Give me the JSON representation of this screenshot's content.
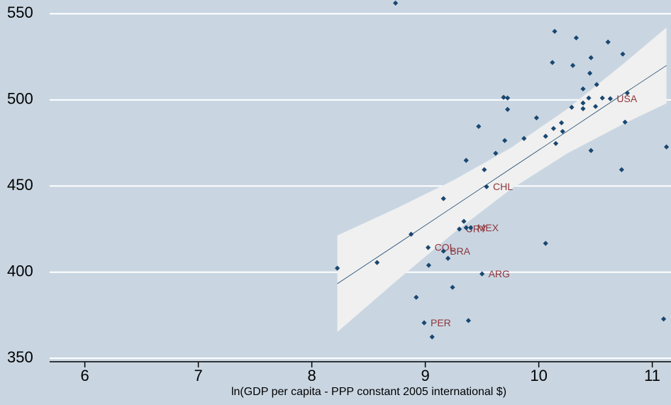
{
  "chart_data": {
    "type": "scatter",
    "x_label": "ln(GDP per capita - PPP constant 2005 international $)",
    "xlim": [
      5.69,
      11.165
    ],
    "ylim": [
      348,
      558
    ],
    "xticks": [
      6,
      7,
      8,
      9,
      10,
      11
    ],
    "yticks": [
      350,
      400,
      450,
      500,
      550
    ],
    "grid": true,
    "color": "#1a476f",
    "label_color": "#90353b",
    "band_color": "#f0f0f0",
    "line_color": "#1a476f",
    "x": [
      8.225,
      8.575,
      8.7375,
      8.875,
      8.92,
      8.99,
      9.025,
      9.03,
      9.06,
      9.16,
      9.16,
      9.2,
      9.24,
      9.3,
      9.34,
      9.36,
      9.38,
      9.4,
      9.36,
      9.47,
      9.5,
      9.52,
      9.54,
      9.62,
      9.7,
      9.69,
      9.725,
      9.725,
      9.87,
      9.98,
      10.06,
      10.06,
      10.12,
      10.13,
      10.14,
      10.15,
      10.2,
      10.21,
      10.29,
      10.3,
      10.33,
      10.39,
      10.39,
      10.39,
      10.44,
      10.45,
      10.46,
      10.46,
      10.5,
      10.51,
      10.56,
      10.61,
      10.63,
      10.73,
      10.74,
      10.76,
      10.78,
      11.1,
      11.125
    ],
    "values": [
      402.3,
      405.6,
      556.2,
      422,
      385.4,
      370.6,
      414.3,
      404,
      362.4,
      412.2,
      442.7,
      408,
      391.2,
      425,
      429.5,
      425.8,
      371.9,
      425.8,
      464.9,
      484.6,
      399,
      459.5,
      449.6,
      469,
      476.4,
      501.5,
      501.1,
      494.5,
      477.6,
      489.6,
      478.9,
      416.7,
      521.7,
      483.4,
      539.8,
      474.7,
      486.7,
      481.7,
      495.7,
      520,
      536,
      506.4,
      498.2,
      494.9,
      501.1,
      515.5,
      524.5,
      470.6,
      496.2,
      508.9,
      501.1,
      533.6,
      500.7,
      459.5,
      526.6,
      487.1,
      504,
      372.8,
      472.7
    ],
    "labels": [
      null,
      null,
      null,
      null,
      null,
      "PER",
      "COL",
      null,
      null,
      "BRA",
      null,
      null,
      null,
      "URY",
      null,
      null,
      null,
      "MEX",
      null,
      null,
      "ARG",
      null,
      "CHL",
      null,
      null,
      null,
      null,
      null,
      null,
      null,
      null,
      null,
      null,
      null,
      null,
      null,
      null,
      null,
      null,
      null,
      null,
      null,
      null,
      null,
      null,
      null,
      null,
      null,
      null,
      null,
      null,
      null,
      "USA",
      null,
      null,
      null,
      null,
      null,
      null
    ],
    "fit_x": [
      8.225,
      8.75,
      9.25,
      9.75,
      10.25,
      10.75,
      11.125
    ],
    "fit": [
      393.3,
      416.2,
      438.1,
      460.0,
      481.8,
      503.7,
      520.0
    ],
    "band_lo": [
      365.3,
      395.2,
      422.8,
      448,
      468.9,
      486.2,
      498
    ],
    "band_hi": [
      421.3,
      437.2,
      453.4,
      472,
      494.7,
      521.2,
      542
    ]
  }
}
